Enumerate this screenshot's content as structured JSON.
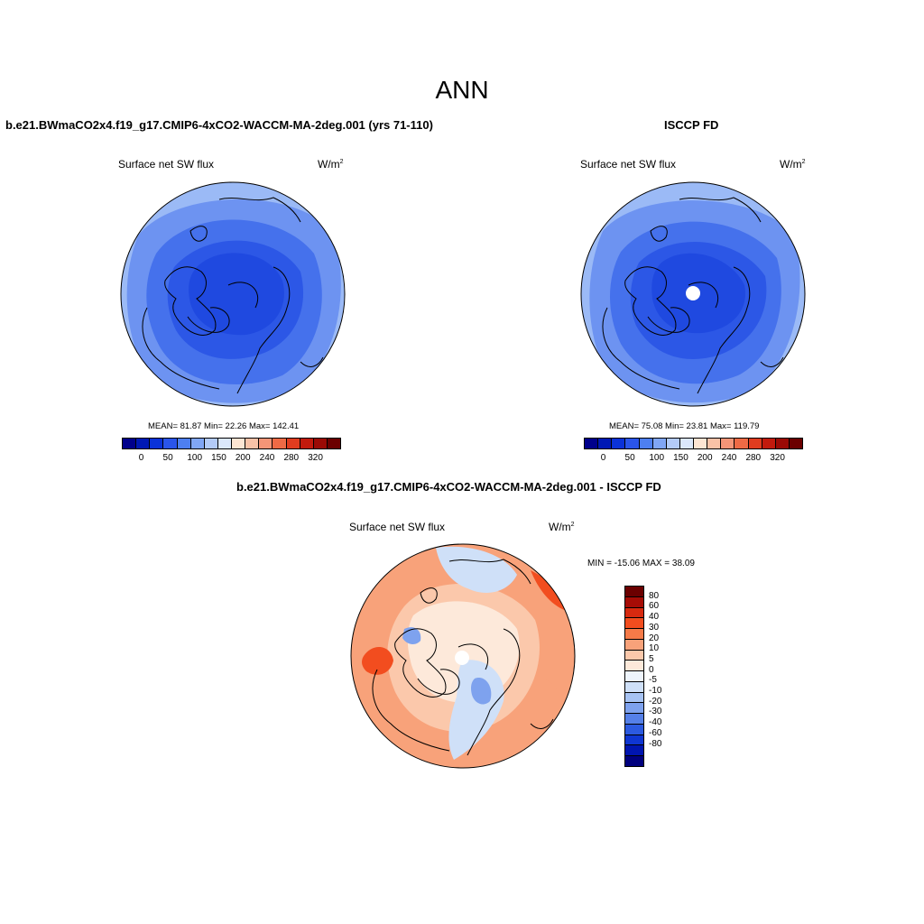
{
  "main_title": "ANN",
  "panels": {
    "model": {
      "title": "b.e21.BWmaCO2x4.f19_g17.CMIP6-4xCO2-WACCM-MA-2deg.001 (yrs 71-110)",
      "variable": "Surface net SW flux",
      "units_base": "W/m",
      "units_exp": "2",
      "stats": "MEAN=  81.87  Min=  22.26  Max= 142.41"
    },
    "obs": {
      "title": "ISCCP FD",
      "variable": "Surface net SW flux",
      "units_base": "W/m",
      "units_exp": "2",
      "stats": "MEAN=  75.08  Min=  23.81  Max= 119.79"
    },
    "diff": {
      "title": "b.e21.BWmaCO2x4.f19_g17.CMIP6-4xCO2-WACCM-MA-2deg.001 - ISCCP FD",
      "variable": "Surface net SW flux",
      "units_base": "W/m",
      "units_exp": "2",
      "stats": "MIN = -15.06 MAX =  38.09"
    }
  },
  "abs_colorbar": {
    "colors": [
      "#00008b",
      "#0018b4",
      "#0a32d8",
      "#2a55ea",
      "#4d7ff0",
      "#80a6f5",
      "#b3cbf8",
      "#dbe7fb",
      "#fde5d3",
      "#f9c2a7",
      "#f49577",
      "#ee6a45",
      "#e03c1f",
      "#c21a0d",
      "#9b0a05",
      "#6b0000"
    ],
    "labels": [
      "0",
      "50",
      "100",
      "150",
      "200",
      "240",
      "280",
      "320"
    ]
  },
  "diff_colorbar": {
    "colors": [
      "#6b0000",
      "#a60c06",
      "#d72a10",
      "#f24d1f",
      "#f57a48",
      "#f8a27a",
      "#fbc8ab",
      "#fde9da",
      "#eef4fc",
      "#cfe0f8",
      "#a7c3f3",
      "#7ea2ee",
      "#5580e8",
      "#2c5ae0",
      "#0f36d2",
      "#0015b0",
      "#00007e"
    ],
    "labels": [
      "80",
      "60",
      "40",
      "30",
      "20",
      "10",
      "5",
      "0",
      "-5",
      "-10",
      "-20",
      "-30",
      "-40",
      "-60",
      "-80"
    ]
  },
  "map_fields": {
    "model": {
      "polar": "#1f49e0",
      "inner": "#2c57e6",
      "mid": "#4571ec",
      "outer": "#6d93f1",
      "edge": "#9bbaf6"
    },
    "obs": {
      "polar": "#1f49e0",
      "inner": "#2c57e6",
      "mid": "#4571ec",
      "outer": "#6d93f1",
      "edge": "#9bbaf6"
    },
    "diff": {
      "base": "#fbc8ab",
      "warm": "#f8a27a",
      "hot": "#f24d1f",
      "cool": "#cfe0f8",
      "cold": "#7ea2ee",
      "neutral": "#fde9da"
    }
  }
}
